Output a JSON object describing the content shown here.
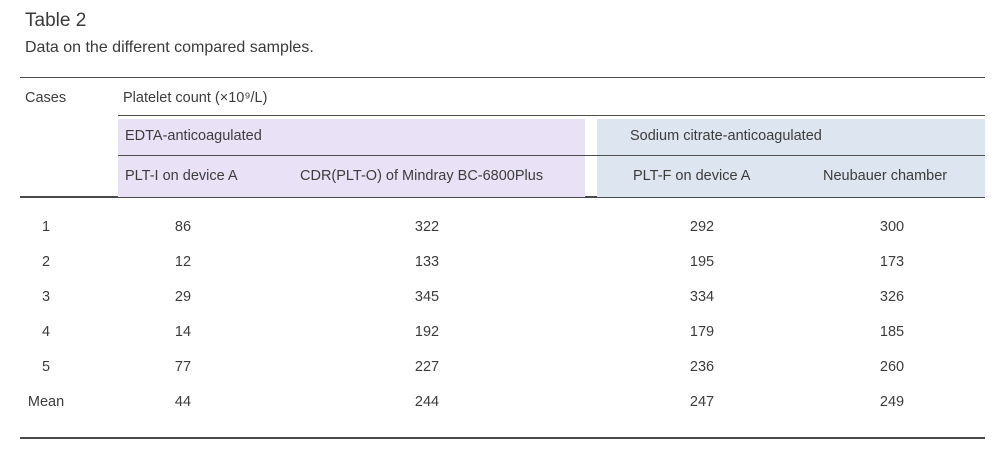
{
  "caption": {
    "label": "Table 2",
    "text": "Data on the different compared samples."
  },
  "colors": {
    "edta_band": "#e9e2f6",
    "citrate_band": "#dde5f0",
    "rule": "#4a4a4a",
    "text": "#3c3c3c"
  },
  "table": {
    "corner_header": "Cases",
    "unit_header": "Platelet count (×10⁹/L)",
    "groups": [
      {
        "label": "EDTA-anticoagulated"
      },
      {
        "label": "Sodium citrate-anticoagulated"
      }
    ],
    "column_headers": [
      "PLT-I on device A",
      "CDR(PLT-O) of Mindray BC-6800Plus",
      "PLT-F on device A",
      "Neubauer chamber"
    ],
    "rows": [
      {
        "case": "1",
        "values": [
          "86",
          "322",
          "292",
          "300"
        ]
      },
      {
        "case": "2",
        "values": [
          "12",
          "133",
          "195",
          "173"
        ]
      },
      {
        "case": "3",
        "values": [
          "29",
          "345",
          "334",
          "326"
        ]
      },
      {
        "case": "4",
        "values": [
          "14",
          "192",
          "179",
          "185"
        ]
      },
      {
        "case": "5",
        "values": [
          "77",
          "227",
          "236",
          "260"
        ]
      },
      {
        "case": "Mean",
        "values": [
          "44",
          "244",
          "247",
          "249"
        ]
      }
    ]
  },
  "chart_data": {
    "type": "table",
    "title": "Table 2 — Data on the different compared samples.",
    "unit": "Platelet count (×10⁹/L)",
    "columns": [
      "Cases",
      "PLT-I on device A",
      "CDR(PLT-O) of Mindray BC-6800Plus",
      "PLT-F on device A",
      "Neubauer chamber"
    ],
    "column_groups": {
      "EDTA-anticoagulated": [
        "PLT-I on device A",
        "CDR(PLT-O) of Mindray BC-6800Plus"
      ],
      "Sodium citrate-anticoagulated": [
        "PLT-F on device A",
        "Neubauer chamber"
      ]
    },
    "rows": [
      [
        "1",
        86,
        322,
        292,
        300
      ],
      [
        "2",
        12,
        133,
        195,
        173
      ],
      [
        "3",
        29,
        345,
        334,
        326
      ],
      [
        "4",
        14,
        192,
        179,
        185
      ],
      [
        "5",
        77,
        227,
        236,
        260
      ],
      [
        "Mean",
        44,
        244,
        247,
        249
      ]
    ]
  }
}
